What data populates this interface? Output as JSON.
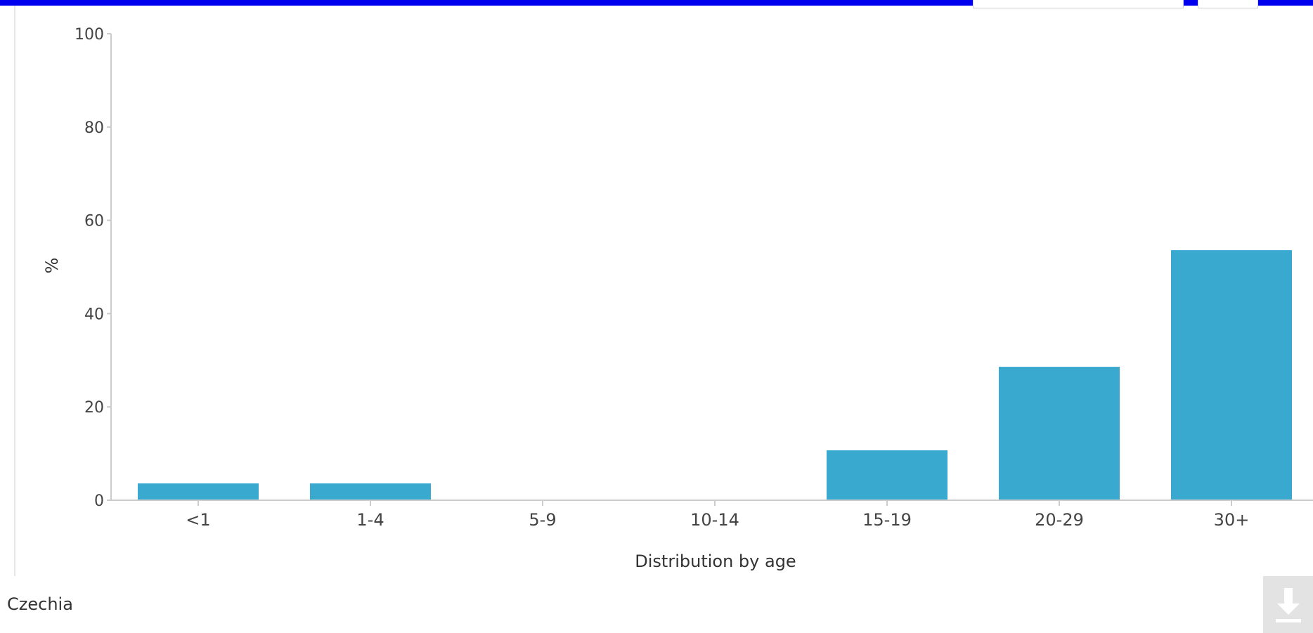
{
  "colors": {
    "top_bar": "#0000ee",
    "bar": "#3aa9cf",
    "axis": "#cccccc",
    "tick_text": "#444444",
    "download_bg": "#e3e3e3",
    "download_icon": "#ffffff"
  },
  "footer": {
    "country": "Czechia",
    "download_icon": "download-arrow-icon"
  },
  "chart_data": {
    "type": "bar",
    "title": "",
    "xlabel": "Distribution by age",
    "ylabel": "%",
    "ylim": [
      0,
      100
    ],
    "yticks": [
      0,
      20,
      40,
      60,
      80,
      100
    ],
    "categories": [
      "<1",
      "1-4",
      "5-9",
      "10-14",
      "15-19",
      "20-29",
      "30+"
    ],
    "values": [
      3.6,
      3.6,
      0,
      0,
      10.7,
      28.6,
      53.6
    ],
    "grid": false,
    "legend": "none"
  }
}
